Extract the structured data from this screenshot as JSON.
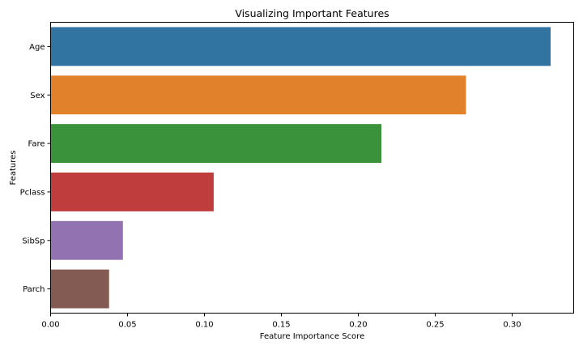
{
  "chart_data": {
    "type": "bar",
    "orientation": "horizontal",
    "title": "Visualizing Important Features",
    "xlabel": "Feature Importance Score",
    "ylabel": "Features",
    "categories": [
      "Age",
      "Sex",
      "Fare",
      "Pclass",
      "SibSp",
      "Parch"
    ],
    "values": [
      0.325,
      0.27,
      0.215,
      0.106,
      0.047,
      0.038
    ],
    "colors": [
      "#3274a1",
      "#e1812c",
      "#3a923a",
      "#c03d3e",
      "#9372b2",
      "#845b53"
    ],
    "xlim": [
      0,
      0.34
    ],
    "xticks": [
      0.0,
      0.05,
      0.1,
      0.15,
      0.2,
      0.25,
      0.3
    ],
    "xtick_labels": [
      "0.00",
      "0.05",
      "0.10",
      "0.15",
      "0.20",
      "0.25",
      "0.30"
    ],
    "grid": false,
    "legend": "none"
  }
}
